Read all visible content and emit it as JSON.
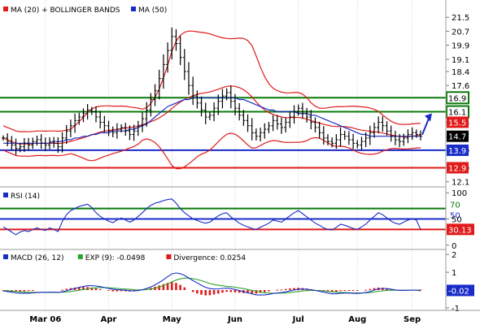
{
  "colors": {
    "price": "#000000",
    "ma20": "#e11b1b",
    "bands": "#e11b1b",
    "ma50": "#1a2cc8",
    "green_level": "#0a7a0a",
    "blue_level": "#1a2cc8",
    "red_level": "#e11b1b",
    "rsi": "#1a2cc8",
    "macd": "#1a2cc8",
    "signal": "#2aa52a",
    "divergence": "#e11b1b",
    "arrow": "#1a2cc8"
  },
  "chart_data": [
    {
      "type": "candlestick",
      "legend": [
        {
          "color": "#e11b1b",
          "label": "MA (20) + BOLLINGER BANDS"
        },
        {
          "color": "#1a2cc8",
          "label": "MA (50)"
        }
      ],
      "y_ticks": [
        21.5,
        20.7,
        19.9,
        19.1,
        18.4,
        17.6,
        16.9,
        16.1,
        15.5,
        14.7,
        13.9,
        12.9,
        12.1
      ],
      "ylim": [
        11.9,
        22.3
      ],
      "horizontal_levels": [
        {
          "value": 16.9,
          "label": "16.9",
          "color": "green"
        },
        {
          "value": 16.1,
          "label": "16.1",
          "color": "green"
        },
        {
          "value": 13.9,
          "label": "13.9",
          "color": "blue"
        },
        {
          "value": 12.9,
          "label": "12.9",
          "color": "red"
        }
      ],
      "value_tags": [
        {
          "value": 15.5,
          "label": "15.5",
          "color": "red"
        },
        {
          "value": 14.7,
          "label": "14.7",
          "color": "black"
        }
      ],
      "x_labels": [
        "Mar 06",
        "Apr",
        "May",
        "Jun",
        "Jul",
        "Aug",
        "Sep"
      ],
      "series": [
        {
          "name": "close",
          "values": [
            14.6,
            14.4,
            14.2,
            14.0,
            14.1,
            14.3,
            14.2,
            14.4,
            14.5,
            14.3,
            14.2,
            14.4,
            14.3,
            14.1,
            14.6,
            15.0,
            15.3,
            15.6,
            15.8,
            16.0,
            16.2,
            16.1,
            15.8,
            15.5,
            15.3,
            15.0,
            14.9,
            15.1,
            15.2,
            15.0,
            14.8,
            15.0,
            15.3,
            15.7,
            16.2,
            16.8,
            17.3,
            18.0,
            18.8,
            19.6,
            20.4,
            20.0,
            19.2,
            18.4,
            17.6,
            17.0,
            16.6,
            16.2,
            15.8,
            15.9,
            16.3,
            16.7,
            17.0,
            17.2,
            16.7,
            16.3,
            15.9,
            15.6,
            15.3,
            14.9,
            14.7,
            14.9,
            15.1,
            15.3,
            15.6,
            15.4,
            15.2,
            15.5,
            15.8,
            16.1,
            16.3,
            16.0,
            15.8,
            15.5,
            15.2,
            14.9,
            14.6,
            14.4,
            14.3,
            14.5,
            14.8,
            14.7,
            14.5,
            14.3,
            14.2,
            14.4,
            14.6,
            14.9,
            15.2,
            15.5,
            15.3,
            15.0,
            14.7,
            14.5,
            14.4,
            14.6,
            14.8,
            14.9,
            14.8,
            14.7
          ]
        },
        {
          "name": "ma50",
          "values": [
            14.3,
            14.3,
            14.3,
            14.3,
            14.3,
            14.3,
            14.3,
            14.3,
            14.3,
            14.3,
            14.3,
            14.3,
            14.4,
            14.4,
            14.4,
            14.5,
            14.5,
            14.6,
            14.6,
            14.7,
            14.7,
            14.8,
            14.8,
            14.9,
            14.9,
            14.9,
            15.0,
            15.0,
            15.0,
            15.0,
            15.1,
            15.1,
            15.2,
            15.3,
            15.4,
            15.6,
            15.8,
            16.0,
            16.2,
            16.4,
            16.5,
            16.6,
            16.7,
            16.8,
            16.8,
            16.9,
            16.9,
            16.9,
            16.9,
            16.9,
            16.9,
            16.9,
            16.9,
            16.9,
            16.9,
            16.9,
            16.8,
            16.8,
            16.7,
            16.6,
            16.5,
            16.4,
            16.3,
            16.2,
            16.2,
            16.1,
            16.1,
            16.1,
            16.1,
            16.1,
            16.0,
            16.0,
            16.0,
            15.9,
            15.9,
            15.8,
            15.7,
            15.6,
            15.5,
            15.4,
            15.3,
            15.2,
            15.1,
            15.0,
            14.9,
            14.8,
            14.8,
            14.7,
            14.7,
            14.7,
            14.7,
            14.7,
            14.7,
            14.7,
            14.7,
            14.7,
            14.7,
            14.7,
            14.7,
            14.7
          ]
        }
      ]
    },
    {
      "type": "line",
      "legend": [
        {
          "color": "#1a2cc8",
          "label": "RSI (14)"
        }
      ],
      "y_ticks": [
        100,
        50,
        0
      ],
      "ylim": [
        -5,
        105
      ],
      "horizontal_levels": [
        {
          "value": 70,
          "label": "70",
          "color": "green"
        },
        {
          "value": 50,
          "label": "50",
          "color": "blue"
        },
        {
          "value": 30,
          "label": "30",
          "color": "red"
        }
      ],
      "value_tag": {
        "value": 30.13,
        "label": "30.13"
      },
      "series": [
        {
          "name": "RSI (14)",
          "values": [
            35,
            30,
            25,
            20,
            25,
            28,
            26,
            30,
            33,
            30,
            28,
            33,
            30,
            26,
            45,
            58,
            66,
            70,
            74,
            76,
            78,
            72,
            62,
            55,
            50,
            46,
            43,
            48,
            52,
            48,
            44,
            48,
            55,
            62,
            70,
            76,
            80,
            82,
            85,
            87,
            88,
            80,
            70,
            62,
            56,
            50,
            47,
            44,
            42,
            44,
            50,
            56,
            60,
            62,
            54,
            48,
            42,
            38,
            35,
            32,
            30,
            34,
            38,
            42,
            48,
            46,
            44,
            50,
            56,
            62,
            66,
            60,
            54,
            48,
            42,
            38,
            33,
            30,
            29,
            34,
            40,
            38,
            35,
            32,
            30,
            35,
            40,
            48,
            55,
            62,
            58,
            52,
            46,
            42,
            40,
            44,
            48,
            50,
            48,
            30
          ]
        }
      ]
    },
    {
      "type": "histogram_line",
      "legend": [
        {
          "color": "#1a2cc8",
          "label": "MACD (26, 12)"
        },
        {
          "color": "#2aa52a",
          "label": "EXP (9): -0.0498"
        },
        {
          "color": "#e11b1b",
          "label": "Divergence: 0.0254"
        }
      ],
      "y_ticks": [
        2,
        1,
        0,
        -1
      ],
      "ylim": [
        -1.05,
        2.1
      ],
      "value_tag": {
        "value": -0.02,
        "label": "-0.02"
      },
      "series": [
        {
          "name": "MACD (26, 12)",
          "values": [
            -0.05,
            -0.08,
            -0.12,
            -0.16,
            -0.18,
            -0.18,
            -0.18,
            -0.16,
            -0.14,
            -0.13,
            -0.13,
            -0.12,
            -0.12,
            -0.13,
            -0.1,
            -0.04,
            0.03,
            0.09,
            0.15,
            0.2,
            0.24,
            0.25,
            0.23,
            0.19,
            0.14,
            0.09,
            0.04,
            0.02,
            0.01,
            -0.01,
            -0.04,
            -0.05,
            -0.03,
            0.02,
            0.09,
            0.18,
            0.29,
            0.43,
            0.58,
            0.75,
            0.91,
            0.96,
            0.92,
            0.82,
            0.68,
            0.53,
            0.4,
            0.27,
            0.15,
            0.08,
            0.06,
            0.07,
            0.09,
            0.11,
            0.08,
            0.03,
            -0.03,
            -0.09,
            -0.15,
            -0.21,
            -0.27,
            -0.28,
            -0.27,
            -0.24,
            -0.19,
            -0.16,
            -0.14,
            -0.1,
            -0.05,
            0.0,
            0.05,
            0.06,
            0.05,
            0.02,
            -0.02,
            -0.07,
            -0.12,
            -0.17,
            -0.21,
            -0.21,
            -0.18,
            -0.17,
            -0.17,
            -0.18,
            -0.19,
            -0.17,
            -0.14,
            -0.08,
            0.0,
            0.07,
            0.09,
            0.08,
            0.05,
            0.01,
            -0.02,
            -0.02,
            -0.01,
            0.0,
            0.0,
            -0.02
          ]
        },
        {
          "name": "EXP (9)",
          "values": [
            -0.03,
            -0.04,
            -0.06,
            -0.08,
            -0.1,
            -0.11,
            -0.13,
            -0.13,
            -0.13,
            -0.13,
            -0.13,
            -0.13,
            -0.13,
            -0.13,
            -0.12,
            -0.11,
            -0.08,
            -0.05,
            -0.01,
            0.03,
            0.07,
            0.11,
            0.13,
            0.14,
            0.14,
            0.13,
            0.11,
            0.09,
            0.07,
            0.06,
            0.04,
            0.02,
            0.01,
            0.01,
            0.03,
            0.06,
            0.1,
            0.17,
            0.25,
            0.35,
            0.46,
            0.56,
            0.63,
            0.67,
            0.67,
            0.64,
            0.59,
            0.53,
            0.45,
            0.37,
            0.31,
            0.27,
            0.24,
            0.21,
            0.19,
            0.16,
            0.12,
            0.08,
            0.03,
            -0.02,
            -0.07,
            -0.12,
            -0.15,
            -0.17,
            -0.18,
            -0.18,
            -0.17,
            -0.16,
            -0.14,
            -0.11,
            -0.08,
            -0.05,
            -0.03,
            -0.02,
            -0.02,
            -0.03,
            -0.05,
            -0.07,
            -0.1,
            -0.12,
            -0.13,
            -0.14,
            -0.15,
            -0.16,
            -0.16,
            -0.16,
            -0.16,
            -0.14,
            -0.11,
            -0.07,
            -0.04,
            -0.02,
            -0.01,
            -0.01,
            -0.01,
            -0.01,
            -0.01,
            -0.01,
            -0.01,
            -0.05
          ]
        }
      ]
    }
  ]
}
